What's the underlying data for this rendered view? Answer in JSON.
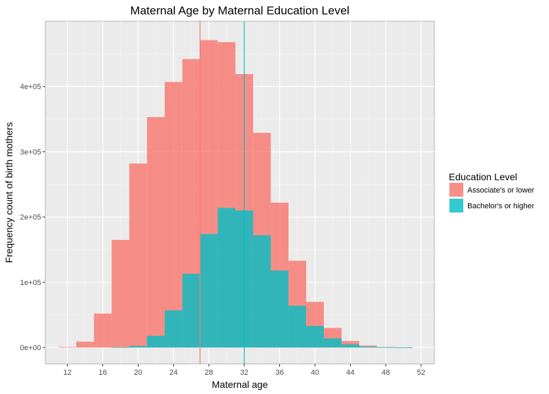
{
  "chart_data": {
    "type": "histogram",
    "title": "Maternal Age by Maternal Education Level",
    "xlabel": "Maternal age",
    "ylabel": "Frequency count of birth mothers",
    "xlim": [
      9.5,
      53.5
    ],
    "ylim": [
      -25000,
      500000
    ],
    "x_ticks": [
      12,
      16,
      20,
      24,
      28,
      32,
      36,
      40,
      44,
      48,
      52
    ],
    "y_ticks": [
      0,
      100000,
      200000,
      300000,
      400000
    ],
    "y_tick_labels": [
      "0e+00",
      "1e+05",
      "2e+05",
      "3e+05",
      "4e+05"
    ],
    "bin_width": 2,
    "grid": true,
    "legend": {
      "title": "Education Level",
      "position": "right"
    },
    "series": [
      {
        "name": "Associate's or lower",
        "color": "#F8766D",
        "mean_line": 27,
        "bins": [
          {
            "x0": 11,
            "x1": 13,
            "value": 800
          },
          {
            "x0": 13,
            "x1": 15,
            "value": 9000
          },
          {
            "x0": 15,
            "x1": 17,
            "value": 52000
          },
          {
            "x0": 17,
            "x1": 19,
            "value": 165000
          },
          {
            "x0": 19,
            "x1": 21,
            "value": 282000
          },
          {
            "x0": 21,
            "x1": 23,
            "value": 353000
          },
          {
            "x0": 23,
            "x1": 25,
            "value": 407000
          },
          {
            "x0": 25,
            "x1": 27,
            "value": 442000
          },
          {
            "x0": 27,
            "x1": 29,
            "value": 471000
          },
          {
            "x0": 29,
            "x1": 31,
            "value": 468000
          },
          {
            "x0": 31,
            "x1": 33,
            "value": 419000
          },
          {
            "x0": 33,
            "x1": 35,
            "value": 329000
          },
          {
            "x0": 35,
            "x1": 37,
            "value": 222000
          },
          {
            "x0": 37,
            "x1": 39,
            "value": 133000
          },
          {
            "x0": 39,
            "x1": 41,
            "value": 70000
          },
          {
            "x0": 41,
            "x1": 43,
            "value": 30000
          },
          {
            "x0": 43,
            "x1": 45,
            "value": 10000
          },
          {
            "x0": 45,
            "x1": 47,
            "value": 3000
          },
          {
            "x0": 47,
            "x1": 49,
            "value": 800
          },
          {
            "x0": 49,
            "x1": 51,
            "value": 300
          }
        ]
      },
      {
        "name": "Bachelor's or higher",
        "color": "#00BFC4",
        "mean_line": 32,
        "bins": [
          {
            "x0": 17,
            "x1": 19,
            "value": 500
          },
          {
            "x0": 19,
            "x1": 21,
            "value": 2500
          },
          {
            "x0": 21,
            "x1": 23,
            "value": 18000
          },
          {
            "x0": 23,
            "x1": 25,
            "value": 57000
          },
          {
            "x0": 25,
            "x1": 27,
            "value": 113000
          },
          {
            "x0": 27,
            "x1": 29,
            "value": 174000
          },
          {
            "x0": 29,
            "x1": 31,
            "value": 214000
          },
          {
            "x0": 31,
            "x1": 33,
            "value": 210000
          },
          {
            "x0": 33,
            "x1": 35,
            "value": 172000
          },
          {
            "x0": 35,
            "x1": 37,
            "value": 118000
          },
          {
            "x0": 37,
            "x1": 39,
            "value": 64000
          },
          {
            "x0": 39,
            "x1": 41,
            "value": 33000
          },
          {
            "x0": 41,
            "x1": 43,
            "value": 14000
          },
          {
            "x0": 43,
            "x1": 45,
            "value": 5000
          },
          {
            "x0": 45,
            "x1": 47,
            "value": 1500
          },
          {
            "x0": 47,
            "x1": 49,
            "value": 500
          },
          {
            "x0": 49,
            "x1": 51,
            "value": 300
          }
        ]
      }
    ]
  }
}
